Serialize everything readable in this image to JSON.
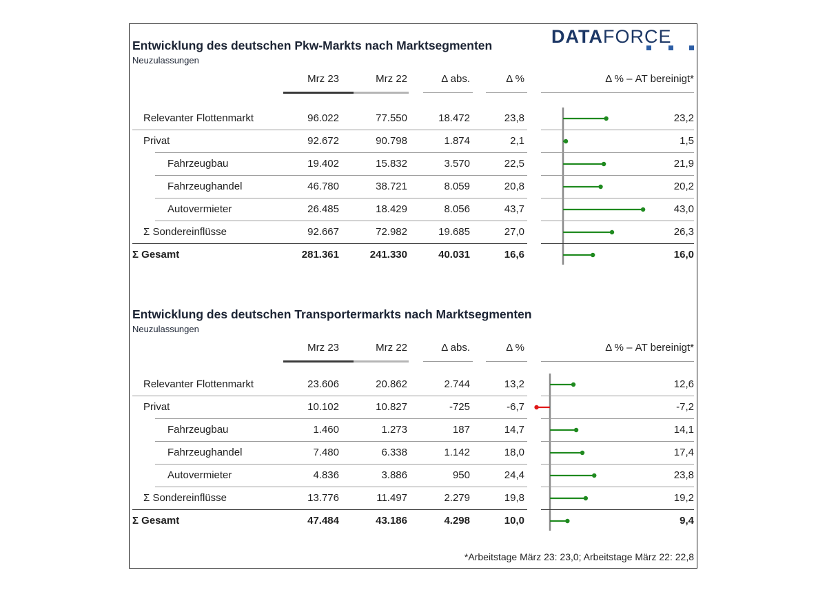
{
  "logo": {
    "bold": "DATA",
    "light": "FORCE"
  },
  "footnote": "*Arbeitstage März 23: 23,0; Arbeitstage März 22: 22,8",
  "columns": {
    "cur": "Mrz 23",
    "prev": "Mrz 22",
    "abs": "Δ abs.",
    "pct": "Δ %",
    "adj": "Δ % – AT bereinigt*"
  },
  "colors": {
    "positive": "#1f8a1f",
    "negative": "#e01818",
    "axis": "#8a8a8a"
  },
  "chart_data": [
    {
      "type": "table",
      "title": "Entwicklung des deutschen Pkw-Markts nach Marktsegmenten",
      "subtitle": "Neuzulassungen",
      "rows": [
        {
          "label": "Relevanter Flottenmarkt",
          "level": 1,
          "bold": false,
          "cur": "96.022",
          "prev": "77.550",
          "abs": "18.472",
          "pct": "23,8",
          "adj": "23,2",
          "adj_value": 23.2
        },
        {
          "label": "Privat",
          "level": 1,
          "bold": false,
          "cur": "92.672",
          "prev": "90.798",
          "abs": "1.874",
          "pct": "2,1",
          "adj": "1,5",
          "adj_value": 1.5
        },
        {
          "label": "Fahrzeugbau",
          "level": 2,
          "bold": false,
          "cur": "19.402",
          "prev": "15.832",
          "abs": "3.570",
          "pct": "22,5",
          "adj": "21,9",
          "adj_value": 21.9
        },
        {
          "label": "Fahrzeughandel",
          "level": 2,
          "bold": false,
          "cur": "46.780",
          "prev": "38.721",
          "abs": "8.059",
          "pct": "20,8",
          "adj": "20,2",
          "adj_value": 20.2
        },
        {
          "label": "Autovermieter",
          "level": 2,
          "bold": false,
          "cur": "26.485",
          "prev": "18.429",
          "abs": "8.056",
          "pct": "43,7",
          "adj": "43,0",
          "adj_value": 43.0
        },
        {
          "label": "Σ Sondereinflüsse",
          "level": 1,
          "bold": false,
          "cur": "92.667",
          "prev": "72.982",
          "abs": "19.685",
          "pct": "27,0",
          "adj": "26,3",
          "adj_value": 26.3
        },
        {
          "label": "Σ Gesamt",
          "level": 0,
          "bold": true,
          "cur": "281.361",
          "prev": "241.330",
          "abs": "40.031",
          "pct": "16,6",
          "adj": "16,0",
          "adj_value": 16.0
        }
      ]
    },
    {
      "type": "table",
      "title": "Entwicklung des deutschen Transportermarkts nach Marktsegmenten",
      "subtitle": "Neuzulassungen",
      "rows": [
        {
          "label": "Relevanter Flottenmarkt",
          "level": 1,
          "bold": false,
          "cur": "23.606",
          "prev": "20.862",
          "abs": "2.744",
          "pct": "13,2",
          "adj": "12,6",
          "adj_value": 12.6
        },
        {
          "label": "Privat",
          "level": 1,
          "bold": false,
          "cur": "10.102",
          "prev": "10.827",
          "abs": "-725",
          "pct": "-6,7",
          "adj": "-7,2",
          "adj_value": -7.2
        },
        {
          "label": "Fahrzeugbau",
          "level": 2,
          "bold": false,
          "cur": "1.460",
          "prev": "1.273",
          "abs": "187",
          "pct": "14,7",
          "adj": "14,1",
          "adj_value": 14.1
        },
        {
          "label": "Fahrzeughandel",
          "level": 2,
          "bold": false,
          "cur": "7.480",
          "prev": "6.338",
          "abs": "1.142",
          "pct": "18,0",
          "adj": "17,4",
          "adj_value": 17.4
        },
        {
          "label": "Autovermieter",
          "level": 2,
          "bold": false,
          "cur": "4.836",
          "prev": "3.886",
          "abs": "950",
          "pct": "24,4",
          "adj": "23,8",
          "adj_value": 23.8
        },
        {
          "label": "Σ Sondereinflüsse",
          "level": 1,
          "bold": false,
          "cur": "13.776",
          "prev": "11.497",
          "abs": "2.279",
          "pct": "19,8",
          "adj": "19,2",
          "adj_value": 19.2
        },
        {
          "label": "Σ Gesamt",
          "level": 0,
          "bold": true,
          "cur": "47.484",
          "prev": "43.186",
          "abs": "4.298",
          "pct": "10,0",
          "adj": "9,4",
          "adj_value": 9.4
        }
      ]
    }
  ]
}
